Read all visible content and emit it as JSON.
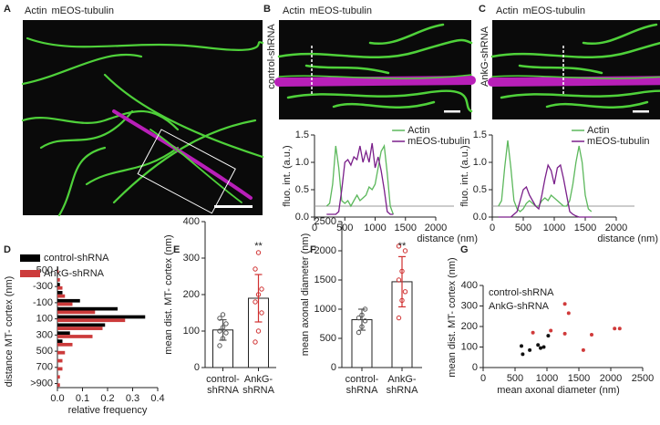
{
  "chart_data": [
    {
      "type": "image",
      "panel": "A",
      "labels": [
        "Actin",
        "mEOS-tubulin"
      ],
      "colors": [
        "#4fd13a",
        "#b81fb8"
      ]
    },
    {
      "type": "image",
      "panel": "B",
      "labels": [
        "Actin",
        "mEOS-tubulin"
      ],
      "colors": [
        "#4fd13a",
        "#b81fb8"
      ],
      "side_label": "control-shRNA"
    },
    {
      "type": "line",
      "ylabel": "fluo. int. (a.u.)",
      "xlabel": "distance (nm)",
      "x": [
        200,
        250,
        300,
        350,
        400,
        450,
        500,
        550,
        600,
        650,
        700,
        750,
        800,
        850,
        900,
        950,
        1000,
        1050,
        1100,
        1150,
        1200,
        1250,
        1300
      ],
      "series": [
        {
          "name": "Actin",
          "color": "#5cb85c",
          "values": [
            0.2,
            0.25,
            0.6,
            1.3,
            0.9,
            0.3,
            0.25,
            0.3,
            0.2,
            0.3,
            0.4,
            0.3,
            0.35,
            0.4,
            0.55,
            0.5,
            0.6,
            0.9,
            1.2,
            1.3,
            0.8,
            0.2,
            0.05
          ]
        },
        {
          "name": "mEOS-tubulin",
          "color": "#7a1f8a",
          "values": [
            0.05,
            0.05,
            0.05,
            0.05,
            0.1,
            0.5,
            1.0,
            1.05,
            0.95,
            1.1,
            1.05,
            1.3,
            1.0,
            1.2,
            1.0,
            1.35,
            0.9,
            1.1,
            0.85,
            0.5,
            0.1,
            0.05,
            0.05
          ]
        }
      ],
      "xlim": [
        0,
        2000
      ],
      "xticks": [
        0,
        500,
        1000,
        1500,
        2000
      ],
      "ylim": [
        0,
        1.5
      ],
      "yticks": [
        {
          "value": 0,
          "label": "0.0"
        },
        {
          "value": 0.5,
          "label": "0.5"
        },
        {
          "value": 1,
          "label": "1.0"
        },
        {
          "value": 1.5,
          "label": "1.5"
        }
      ],
      "reference_line": 0.2
    },
    {
      "type": "image",
      "panel": "C",
      "labels": [
        "Actin",
        "mEOS-tubulin"
      ],
      "colors": [
        "#4fd13a",
        "#b81fb8"
      ],
      "side_label": "AnkG-shRNA"
    },
    {
      "type": "line",
      "ylabel": "fluo. int. (a.u.)",
      "xlabel": "distance (nm)",
      "x": [
        100,
        150,
        200,
        250,
        300,
        350,
        400,
        450,
        500,
        550,
        600,
        650,
        700,
        750,
        800,
        850,
        900,
        950,
        1000,
        1050,
        1100,
        1150,
        1200,
        1250,
        1300,
        1350,
        1400,
        1450,
        1500,
        1550,
        1600
      ],
      "series": [
        {
          "name": "Actin",
          "color": "#5cb85c",
          "values": [
            0.2,
            0.3,
            0.9,
            1.4,
            0.9,
            0.3,
            0.15,
            0.1,
            0.15,
            0.25,
            0.3,
            0.25,
            0.2,
            0.2,
            0.3,
            0.35,
            0.3,
            0.4,
            0.35,
            0.3,
            0.25,
            0.2,
            0.2,
            0.3,
            0.6,
            1.0,
            1.3,
            1.0,
            0.4,
            0.15,
            0.1
          ]
        },
        {
          "name": "mEOS-tubulin",
          "color": "#7a1f8a",
          "values": [
            0,
            0,
            0,
            0,
            0,
            0.05,
            0.1,
            0.3,
            0.5,
            0.55,
            0.4,
            0.3,
            0.2,
            0.15,
            0.4,
            0.7,
            0.95,
            0.85,
            0.6,
            0.9,
            0.95,
            0.7,
            0.4,
            0.1,
            0.05,
            0.02,
            0,
            0,
            0,
            0,
            0
          ]
        }
      ],
      "xlim": [
        0,
        2000
      ],
      "xticks": [
        0,
        500,
        1000,
        1500,
        2000
      ],
      "ylim": [
        0,
        1.5
      ],
      "yticks": [
        {
          "value": 0,
          "label": "0.0"
        },
        {
          "value": 0.5,
          "label": "0.5"
        },
        {
          "value": 1,
          "label": "1.0"
        },
        {
          "value": 1.5,
          "label": "1.5"
        }
      ],
      "reference_line": 0.2
    },
    {
      "type": "barh",
      "panel": "D",
      "ylabel": "distance MT- cortex (nm)",
      "xlabel": "relative frequency",
      "categories": [
        "-500",
        null,
        "-300",
        null,
        "-100",
        null,
        "100",
        null,
        "300",
        null,
        "500",
        null,
        "700",
        null,
        ">900"
      ],
      "series": [
        {
          "name": "control-shRNA",
          "color": "#000000",
          "values": [
            0.003,
            0,
            0.01,
            0.02,
            0.09,
            0.24,
            0.35,
            0.19,
            0.05,
            0.02,
            0,
            0,
            0,
            0,
            0
          ]
        },
        {
          "name": "AnkG-shRNA",
          "color": "#cc3b3b",
          "values": [
            0.005,
            0.01,
            0.02,
            0.03,
            0.06,
            0.15,
            0.27,
            0.18,
            0.14,
            0.06,
            0.03,
            0.02,
            0.02,
            0.01,
            0.01
          ]
        }
      ],
      "xlim": [
        0,
        0.4
      ],
      "xticks": [
        {
          "value": 0,
          "label": "0.0"
        },
        {
          "value": 0.1,
          "label": "0.1"
        },
        {
          "value": 0.2,
          "label": "0.2"
        },
        {
          "value": 0.3,
          "label": "0.3"
        },
        {
          "value": 0.4,
          "label": "0.4"
        }
      ]
    },
    {
      "type": "bar_dot",
      "panel": "E",
      "ylabel": "mean dist. MT- cortex (nm)",
      "categories": [
        "control-\nshRNA",
        "AnkG-\nshRNA"
      ],
      "values": [
        103,
        190
      ],
      "errors": [
        28,
        65
      ],
      "points": [
        [
          60,
          80,
          95,
          100,
          110,
          120,
          135,
          145
        ],
        [
          70,
          100,
          150,
          180,
          200,
          215,
          270,
          315
        ]
      ],
      "colors": [
        "#555555",
        "#d03030"
      ],
      "annotation": "**",
      "ylim": [
        0,
        400
      ],
      "yticks": [
        0,
        100,
        200,
        300,
        400
      ]
    },
    {
      "type": "bar_dot",
      "panel": "F",
      "ylabel": "mean axonal diameter (nm)",
      "categories": [
        "control-\nshRNA",
        "AnkG-\nshRNA"
      ],
      "values": [
        820,
        1470
      ],
      "errors": [
        180,
        430
      ],
      "points": [
        [
          600,
          700,
          800,
          850,
          900,
          1000
        ],
        [
          850,
          1150,
          1300,
          1500,
          1650,
          2000,
          2080
        ]
      ],
      "colors": [
        "#555555",
        "#d03030"
      ],
      "annotation": "**",
      "ylim": [
        0,
        2500
      ],
      "yticks": [
        0,
        500,
        1000,
        1500,
        2000,
        2500
      ]
    },
    {
      "type": "scatter",
      "panel": "G",
      "ylabel": "mean dist. MT- cortex (nm)",
      "xlabel": "mean axonal diameter (nm)",
      "series": [
        {
          "name": "control-shRNA",
          "color": "#111111",
          "x": [
            600,
            620,
            730,
            860,
            900,
            950,
            1020
          ],
          "y": [
            105,
            65,
            85,
            110,
            95,
            100,
            155
          ]
        },
        {
          "name": "AnkG-shRNA",
          "color": "#d03a3a",
          "x": [
            780,
            1060,
            1280,
            1280,
            1340,
            1570,
            1700,
            2060,
            2140
          ],
          "y": [
            170,
            180,
            310,
            165,
            265,
            85,
            160,
            190,
            190
          ]
        }
      ],
      "xlim": [
        0,
        2500
      ],
      "xticks": [
        0,
        500,
        1000,
        1500,
        2000,
        2500
      ],
      "ylim": [
        0,
        400
      ],
      "yticks": [
        0,
        100,
        200,
        300,
        400
      ]
    }
  ]
}
